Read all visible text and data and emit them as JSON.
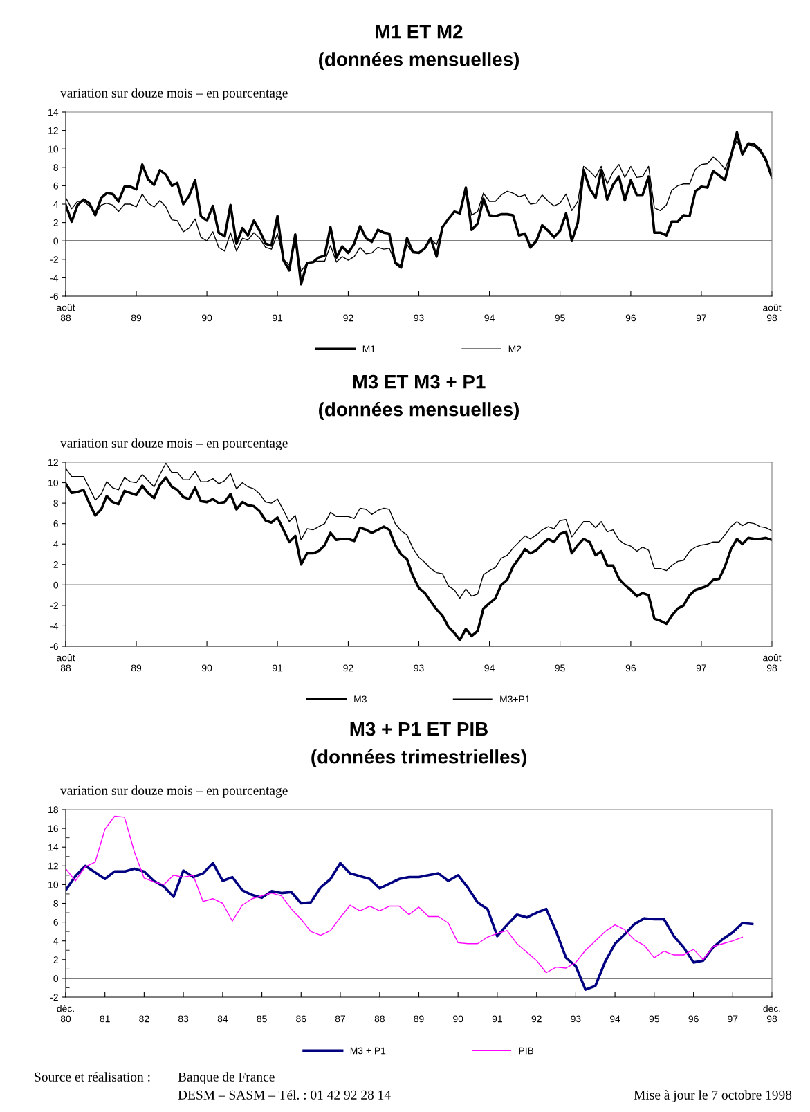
{
  "chart_data": [
    {
      "type": "line",
      "title": "M1 ET M2",
      "subtitle": "(données mensuelles)",
      "ylabel": "variation sur douze mois – en pourcentage",
      "x": [
        "1988-08",
        "1988-09",
        "1988-10",
        "1988-11",
        "1988-12",
        "1989-01",
        "1989-02",
        "1989-03",
        "1989-04",
        "1989-05",
        "1989-06",
        "1989-07",
        "1989-08",
        "1989-09",
        "1989-10",
        "1989-11",
        "1989-12",
        "1990-01",
        "1990-02",
        "1990-03",
        "1990-04",
        "1990-05",
        "1990-06",
        "1990-07",
        "1990-08",
        "1990-09",
        "1990-10",
        "1990-11",
        "1990-12",
        "1991-01",
        "1991-02",
        "1991-03",
        "1991-04",
        "1991-05",
        "1991-06",
        "1991-07",
        "1991-08",
        "1991-09",
        "1991-10",
        "1991-11",
        "1991-12",
        "1992-01",
        "1992-02",
        "1992-03",
        "1992-04",
        "1992-05",
        "1992-06",
        "1992-07",
        "1992-08",
        "1992-09",
        "1992-10",
        "1992-11",
        "1992-12",
        "1993-01",
        "1993-02",
        "1993-03",
        "1993-04",
        "1993-05",
        "1993-06",
        "1993-07",
        "1993-08",
        "1993-09",
        "1993-10",
        "1993-11",
        "1993-12",
        "1994-01",
        "1994-02",
        "1994-03",
        "1994-04",
        "1994-05",
        "1994-06",
        "1994-07",
        "1994-08",
        "1994-09",
        "1994-10",
        "1994-11",
        "1994-12",
        "1995-01",
        "1995-02",
        "1995-03",
        "1995-04",
        "1995-05",
        "1995-06",
        "1995-07",
        "1995-08",
        "1995-09",
        "1995-10",
        "1995-11",
        "1995-12",
        "1996-01",
        "1996-02",
        "1996-03",
        "1996-04",
        "1996-05",
        "1996-06",
        "1996-07",
        "1996-08",
        "1996-09",
        "1996-10",
        "1996-11",
        "1996-12",
        "1997-01",
        "1997-02",
        "1997-03",
        "1997-04",
        "1997-05",
        "1997-06",
        "1997-07",
        "1997-08",
        "1997-09",
        "1997-10",
        "1997-11",
        "1997-12",
        "1998-01",
        "1998-02",
        "1998-03",
        "1998-04",
        "1998-05",
        "1998-06",
        "1998-07",
        "1998-08"
      ],
      "series": [
        {
          "name": "M1",
          "color": "#000000",
          "values": [
            3.9,
            2.1,
            3.9,
            4.5,
            4.1,
            2.8,
            4.7,
            5.2,
            5.1,
            4.3,
            5.9,
            5.9,
            5.6,
            8.3,
            6.7,
            6.1,
            7.7,
            7.2,
            6.0,
            6.3,
            4.0,
            4.9,
            6.6,
            2.7,
            2.2,
            3.8,
            0.9,
            0.5,
            3.9,
            -0.3,
            1.4,
            0.6,
            2.2,
            1.1,
            -0.3,
            -0.5,
            2.7,
            -2.1,
            -3.2,
            0.7,
            -4.7,
            -2.4,
            -2.3,
            -1.8,
            -1.6,
            1.5,
            -1.8,
            -0.6,
            -1.3,
            -0.3,
            1.6,
            0.3,
            -0.1,
            1.2,
            0.9,
            0.8,
            -2.4,
            -2.9,
            0.3,
            -1.2,
            -1.3,
            -0.8,
            0.3,
            -1.7,
            1.5,
            2.4,
            3.2,
            3.0,
            5.8,
            1.2,
            1.9,
            4.6,
            2.8,
            2.7,
            2.9,
            2.9,
            2.8,
            0.6,
            0.8,
            -0.7,
            0.0,
            1.7,
            1.1,
            0.4,
            1.1,
            3.0,
            0.0,
            2.0,
            7.7,
            5.7,
            4.7,
            7.7,
            4.5,
            6.1,
            7.0,
            4.4,
            6.6,
            5.0,
            5.0,
            7.0,
            0.9,
            0.9,
            0.6,
            2.1,
            2.1,
            2.8,
            2.7,
            5.4,
            5.9,
            5.8,
            7.6,
            7.1,
            6.6,
            9.2,
            11.8,
            9.4,
            10.6,
            10.5,
            9.9,
            8.8,
            6.9
          ]
        },
        {
          "name": "M2",
          "color": "#000000",
          "values": [
            4.7,
            3.5,
            4.3,
            4.3,
            3.8,
            2.9,
            3.9,
            4.1,
            3.9,
            3.2,
            4.0,
            4.0,
            3.7,
            5.1,
            4.1,
            3.7,
            4.4,
            3.7,
            2.3,
            2.2,
            1.0,
            1.4,
            2.4,
            0.4,
            0.0,
            1.0,
            -0.7,
            -1.1,
            0.9,
            -1.1,
            0.3,
            0.1,
            0.9,
            0.3,
            -0.7,
            -0.9,
            0.8,
            -2.0,
            -2.6,
            -0.2,
            -3.3,
            -2.4,
            -2.3,
            -2.2,
            -2.2,
            -0.5,
            -2.3,
            -1.7,
            -2.1,
            -1.7,
            -0.7,
            -1.4,
            -1.3,
            -0.7,
            -0.9,
            -0.8,
            -2.3,
            -2.6,
            -0.4,
            -1.3,
            -1.3,
            -0.8,
            0.2,
            -0.4,
            1.4,
            2.4,
            3.2,
            3.0,
            5.8,
            2.8,
            3.2,
            5.2,
            4.3,
            4.3,
            5.0,
            5.4,
            5.2,
            4.8,
            5.0,
            4.0,
            4.1,
            5.0,
            4.3,
            3.8,
            4.1,
            5.1,
            3.3,
            4.3,
            8.1,
            7.6,
            6.9,
            8.1,
            6.2,
            7.5,
            8.3,
            6.9,
            8.1,
            6.9,
            7.0,
            8.1,
            3.6,
            3.3,
            3.9,
            5.5,
            6.0,
            6.2,
            6.2,
            7.8,
            8.3,
            8.4,
            9.1,
            8.6,
            7.8,
            9.4,
            10.9,
            9.6,
            10.4,
            10.3,
            9.7,
            8.6,
            6.9
          ]
        }
      ],
      "xlim": [
        "1988-08",
        "1998-08"
      ],
      "xticks": [
        {
          "value": "1988-08",
          "label": "août\n88"
        },
        {
          "value": "1989-08",
          "label": "89"
        },
        {
          "value": "1990-08",
          "label": "90"
        },
        {
          "value": "1991-08",
          "label": "91"
        },
        {
          "value": "1992-08",
          "label": "92"
        },
        {
          "value": "1993-08",
          "label": "93"
        },
        {
          "value": "1994-08",
          "label": "94"
        },
        {
          "value": "1995-08",
          "label": "95"
        },
        {
          "value": "1996-08",
          "label": "96"
        },
        {
          "value": "1997-08",
          "label": "97"
        },
        {
          "value": "1998-08",
          "label": "août\n98"
        }
      ],
      "ylim": [
        -6,
        14
      ],
      "yticks": [
        -6,
        -4,
        -2,
        0,
        2,
        4,
        6,
        8,
        10,
        12,
        14
      ],
      "ref_lines": [
        {
          "axis": "y",
          "value": 0,
          "color": "#000000"
        }
      ],
      "grid": false,
      "legend": "bottom"
    },
    {
      "type": "line",
      "title": "M3 ET M3 + P1",
      "subtitle": "(données mensuelles)",
      "ylabel": "variation sur douze mois – en pourcentage",
      "x": [
        "1988-08",
        "1988-09",
        "1988-10",
        "1988-11",
        "1988-12",
        "1989-01",
        "1989-02",
        "1989-03",
        "1989-04",
        "1989-05",
        "1989-06",
        "1989-07",
        "1989-08",
        "1989-09",
        "1989-10",
        "1989-11",
        "1989-12",
        "1990-01",
        "1990-02",
        "1990-03",
        "1990-04",
        "1990-05",
        "1990-06",
        "1990-07",
        "1990-08",
        "1990-09",
        "1990-10",
        "1990-11",
        "1990-12",
        "1991-01",
        "1991-02",
        "1991-03",
        "1991-04",
        "1991-05",
        "1991-06",
        "1991-07",
        "1991-08",
        "1991-09",
        "1991-10",
        "1991-11",
        "1991-12",
        "1992-01",
        "1992-02",
        "1992-03",
        "1992-04",
        "1992-05",
        "1992-06",
        "1992-07",
        "1992-08",
        "1992-09",
        "1992-10",
        "1992-11",
        "1992-12",
        "1993-01",
        "1993-02",
        "1993-03",
        "1993-04",
        "1993-05",
        "1993-06",
        "1993-07",
        "1993-08",
        "1993-09",
        "1993-10",
        "1993-11",
        "1993-12",
        "1994-01",
        "1994-02",
        "1994-03",
        "1994-04",
        "1994-05",
        "1994-06",
        "1994-07",
        "1994-08",
        "1994-09",
        "1994-10",
        "1994-11",
        "1994-12",
        "1995-01",
        "1995-02",
        "1995-03",
        "1995-04",
        "1995-05",
        "1995-06",
        "1995-07",
        "1995-08",
        "1995-09",
        "1995-10",
        "1995-11",
        "1995-12",
        "1996-01",
        "1996-02",
        "1996-03",
        "1996-04",
        "1996-05",
        "1996-06",
        "1996-07",
        "1996-08",
        "1996-09",
        "1996-10",
        "1996-11",
        "1996-12",
        "1997-01",
        "1997-02",
        "1997-03",
        "1997-04",
        "1997-05",
        "1997-06",
        "1997-07",
        "1997-08",
        "1997-09",
        "1997-10",
        "1997-11",
        "1997-12",
        "1998-01",
        "1998-02",
        "1998-03",
        "1998-04",
        "1998-05",
        "1998-06",
        "1998-07",
        "1998-08"
      ],
      "series": [
        {
          "name": "M3",
          "color": "#000000",
          "values": [
            9.9,
            9.0,
            9.1,
            9.3,
            8.0,
            6.8,
            7.4,
            8.7,
            8.1,
            7.9,
            9.2,
            9.0,
            8.8,
            9.7,
            9.0,
            8.5,
            9.8,
            10.5,
            9.6,
            9.3,
            8.6,
            8.4,
            9.5,
            8.2,
            8.1,
            8.4,
            8.0,
            8.1,
            8.9,
            7.4,
            8.1,
            7.8,
            7.7,
            7.2,
            6.3,
            6.1,
            6.6,
            5.4,
            4.2,
            4.8,
            2.0,
            3.1,
            3.1,
            3.3,
            3.9,
            5.1,
            4.4,
            4.5,
            4.5,
            4.3,
            5.6,
            5.4,
            5.1,
            5.4,
            5.7,
            5.4,
            3.9,
            3.0,
            2.5,
            0.9,
            -0.3,
            -0.8,
            -1.6,
            -2.4,
            -3.0,
            -4.1,
            -4.7,
            -5.4,
            -4.3,
            -5.0,
            -4.5,
            -2.3,
            -1.8,
            -1.3,
            0.0,
            0.5,
            1.8,
            2.6,
            3.5,
            3.1,
            3.4,
            4.0,
            4.5,
            4.2,
            5.0,
            5.2,
            3.1,
            3.9,
            4.5,
            4.2,
            2.9,
            3.3,
            1.9,
            1.9,
            0.6,
            0.0,
            -0.5,
            -1.1,
            -0.8,
            -1.0,
            -3.3,
            -3.5,
            -3.8,
            -3.0,
            -2.3,
            -2.0,
            -1.0,
            -0.5,
            -0.3,
            -0.1,
            0.5,
            0.6,
            1.8,
            3.5,
            4.5,
            4.0,
            4.6,
            4.5,
            4.5,
            4.6,
            4.4
          ]
        },
        {
          "name": "M3+P1",
          "color": "#000000",
          "values": [
            11.4,
            10.6,
            10.6,
            10.6,
            9.5,
            8.3,
            8.9,
            10.1,
            9.5,
            9.3,
            10.5,
            10.1,
            10.0,
            10.8,
            10.2,
            9.6,
            10.8,
            11.9,
            11.0,
            11.0,
            10.3,
            10.3,
            11.1,
            10.1,
            10.1,
            10.4,
            9.9,
            10.2,
            10.9,
            9.4,
            10.0,
            9.6,
            9.4,
            8.9,
            8.1,
            8.0,
            8.4,
            7.3,
            6.2,
            6.8,
            4.4,
            5.5,
            5.4,
            5.7,
            6.0,
            7.1,
            6.7,
            6.7,
            6.7,
            6.5,
            7.5,
            7.4,
            6.9,
            7.3,
            7.5,
            7.4,
            6.0,
            5.3,
            4.9,
            3.6,
            2.7,
            2.2,
            1.6,
            1.2,
            1.1,
            -0.1,
            -0.5,
            -1.3,
            -0.4,
            -1.1,
            -0.9,
            1.0,
            1.4,
            1.7,
            2.6,
            2.9,
            3.6,
            4.2,
            4.8,
            4.5,
            4.9,
            5.4,
            5.7,
            5.5,
            6.3,
            6.4,
            4.7,
            5.5,
            6.2,
            6.2,
            5.6,
            6.2,
            5.2,
            5.4,
            4.4,
            4.0,
            3.8,
            3.3,
            3.7,
            3.4,
            1.6,
            1.6,
            1.4,
            1.9,
            2.3,
            2.4,
            3.3,
            3.7,
            3.9,
            4.0,
            4.2,
            4.2,
            4.9,
            5.7,
            6.2,
            5.8,
            6.1,
            6.0,
            5.7,
            5.6,
            5.3
          ]
        }
      ],
      "xlim": [
        "1988-08",
        "1998-08"
      ],
      "xticks": [
        {
          "value": "1988-08",
          "label": "août\n88"
        },
        {
          "value": "1989-08",
          "label": "89"
        },
        {
          "value": "1990-08",
          "label": "90"
        },
        {
          "value": "1991-08",
          "label": "91"
        },
        {
          "value": "1992-08",
          "label": "92"
        },
        {
          "value": "1993-08",
          "label": "93"
        },
        {
          "value": "1994-08",
          "label": "94"
        },
        {
          "value": "1995-08",
          "label": "95"
        },
        {
          "value": "1996-08",
          "label": "96"
        },
        {
          "value": "1997-08",
          "label": "97"
        },
        {
          "value": "1998-08",
          "label": "août\n98"
        }
      ],
      "ylim": [
        -6,
        12
      ],
      "yticks": [
        -6,
        -4,
        -2,
        0,
        2,
        4,
        6,
        8,
        10,
        12
      ],
      "ref_lines": [
        {
          "axis": "y",
          "value": 0,
          "color": "#000000"
        }
      ],
      "grid": false,
      "legend": "bottom"
    },
    {
      "type": "line",
      "title": "M3 + P1 ET PIB",
      "subtitle": "(données trimestrielles)",
      "ylabel": "variation sur douze mois – en pourcentage",
      "x": [
        "1980-12",
        "1981-03",
        "1981-06",
        "1981-09",
        "1981-12",
        "1982-03",
        "1982-06",
        "1982-09",
        "1982-12",
        "1983-03",
        "1983-06",
        "1983-09",
        "1983-12",
        "1984-03",
        "1984-06",
        "1984-09",
        "1984-12",
        "1985-03",
        "1985-06",
        "1985-09",
        "1985-12",
        "1986-03",
        "1986-06",
        "1986-09",
        "1986-12",
        "1987-03",
        "1987-06",
        "1987-09",
        "1987-12",
        "1988-03",
        "1988-06",
        "1988-09",
        "1988-12",
        "1989-03",
        "1989-06",
        "1989-09",
        "1989-12",
        "1990-03",
        "1990-06",
        "1990-09",
        "1990-12",
        "1991-03",
        "1991-06",
        "1991-09",
        "1991-12",
        "1992-03",
        "1992-06",
        "1992-09",
        "1992-12",
        "1993-03",
        "1993-06",
        "1993-09",
        "1993-12",
        "1994-03",
        "1994-06",
        "1994-09",
        "1994-12",
        "1995-03",
        "1995-06",
        "1995-09",
        "1995-12",
        "1996-03",
        "1996-06",
        "1996-09",
        "1996-12",
        "1997-03",
        "1997-06",
        "1997-09",
        "1997-12",
        "1998-03",
        "1998-06"
      ],
      "series": [
        {
          "name": "M3 + P1",
          "color": "#000080",
          "values": [
            9.4,
            10.9,
            12.0,
            11.3,
            10.6,
            11.4,
            11.4,
            11.7,
            11.4,
            10.4,
            9.8,
            8.7,
            11.5,
            10.8,
            11.2,
            12.3,
            10.4,
            10.8,
            9.4,
            8.9,
            8.6,
            9.3,
            9.1,
            9.2,
            8.0,
            8.1,
            9.7,
            10.6,
            12.3,
            11.2,
            10.9,
            10.6,
            9.6,
            10.1,
            10.6,
            10.8,
            10.8,
            11.0,
            11.2,
            10.4,
            11.0,
            9.7,
            8.1,
            7.4,
            4.5,
            5.7,
            6.8,
            6.5,
            7.0,
            7.4,
            5.0,
            2.2,
            1.3,
            -1.2,
            -0.8,
            1.8,
            3.7,
            4.7,
            5.8,
            6.4,
            6.3,
            6.3,
            4.5,
            3.3,
            1.7,
            1.9,
            3.3,
            4.2,
            4.9,
            5.9,
            5.8
          ]
        },
        {
          "name": "PIB",
          "color": "#ff00ff",
          "values": [
            11.7,
            10.4,
            11.9,
            12.4,
            15.9,
            17.3,
            17.2,
            13.5,
            10.7,
            10.3,
            10.0,
            11.0,
            10.8,
            11.0,
            8.2,
            8.5,
            8.0,
            6.1,
            7.8,
            8.5,
            8.8,
            9.1,
            8.8,
            7.4,
            6.3,
            5.0,
            4.6,
            5.1,
            6.5,
            7.8,
            7.2,
            7.7,
            7.2,
            7.7,
            7.7,
            6.8,
            7.6,
            6.6,
            6.6,
            5.9,
            3.8,
            3.7,
            3.7,
            4.4,
            4.8,
            5.1,
            3.7,
            2.8,
            1.9,
            0.6,
            1.2,
            1.1,
            1.7,
            3.0,
            4.0,
            5.0,
            5.7,
            5.2,
            4.1,
            3.5,
            2.2,
            2.9,
            2.5,
            2.5,
            3.1,
            2.0,
            3.4,
            3.7,
            4.0,
            4.4,
            null
          ]
        }
      ],
      "xlim": [
        "1980-12",
        "1998-12"
      ],
      "xticks": [
        {
          "value": "1980-12",
          "label": "déc.\n80"
        },
        {
          "value": "1981-12",
          "label": "81"
        },
        {
          "value": "1982-12",
          "label": "82"
        },
        {
          "value": "1983-12",
          "label": "83"
        },
        {
          "value": "1984-12",
          "label": "84"
        },
        {
          "value": "1985-12",
          "label": "85"
        },
        {
          "value": "1986-12",
          "label": "86"
        },
        {
          "value": "1987-12",
          "label": "87"
        },
        {
          "value": "1988-12",
          "label": "88"
        },
        {
          "value": "1989-12",
          "label": "89"
        },
        {
          "value": "1990-12",
          "label": "90"
        },
        {
          "value": "1991-12",
          "label": "91"
        },
        {
          "value": "1992-12",
          "label": "92"
        },
        {
          "value": "1993-12",
          "label": "93"
        },
        {
          "value": "1994-12",
          "label": "94"
        },
        {
          "value": "1995-12",
          "label": "95"
        },
        {
          "value": "1996-12",
          "label": "96"
        },
        {
          "value": "1997-12",
          "label": "97"
        },
        {
          "value": "1998-12",
          "label": "déc.\n98"
        }
      ],
      "ylim": [
        -2,
        18
      ],
      "yticks": [
        -2,
        {
          "value": -1,
          "label": null
        },
        0,
        {
          "value": 1,
          "label": null
        },
        2,
        {
          "value": 3,
          "label": null
        },
        4,
        {
          "value": 5,
          "label": null
        },
        6,
        {
          "value": 7,
          "label": null
        },
        8,
        {
          "value": 9,
          "label": null
        },
        10,
        {
          "value": 11,
          "label": null
        },
        12,
        {
          "value": 13,
          "label": null
        },
        14,
        {
          "value": 15,
          "label": null
        },
        16,
        {
          "value": 17,
          "label": null
        },
        18
      ],
      "ref_lines": [
        {
          "axis": "y",
          "value": 0,
          "color": "#000000"
        }
      ],
      "grid": false,
      "legend": "bottom",
      "annotations": [
        "Source et réalisation :",
        "Banque de France",
        "DESM – SASM – Tél. : 01 42 92 28 14",
        "Mise à jour le 7 octobre 1998"
      ]
    }
  ]
}
